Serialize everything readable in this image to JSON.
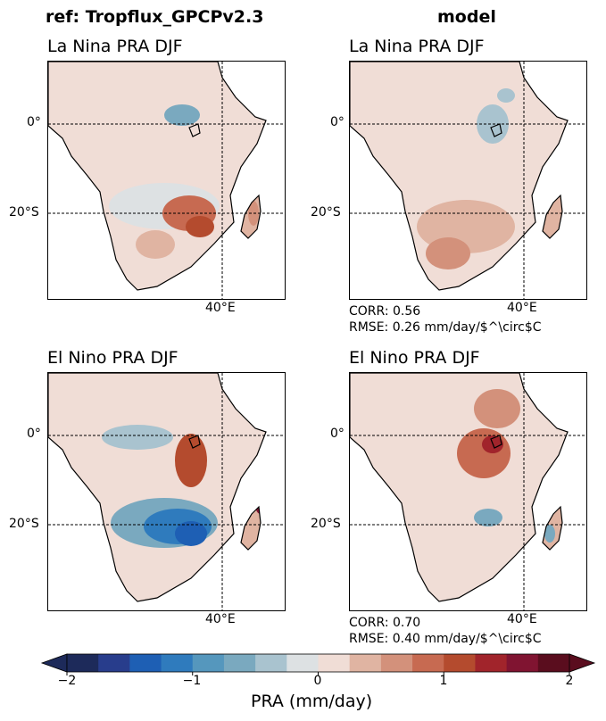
{
  "column_titles": [
    "ref: Tropflux_GPCPv2.3",
    "model"
  ],
  "chart_data": [
    {
      "type": "heatmap",
      "title": "La Nina PRA DJF",
      "column": "ref: Tropflux_GPCPv2.3",
      "lat_ticks": [
        "0°",
        "20°S"
      ],
      "lon_ticks": [
        "40°E"
      ],
      "peak_anomaly": 1.2
    },
    {
      "type": "heatmap",
      "title": "La Nina PRA DJF",
      "column": "model",
      "lat_ticks": [
        "0°",
        "20°S"
      ],
      "lon_ticks": [
        "40°E"
      ],
      "corr_text": "CORR: 0.56",
      "rmse_text": "RMSE: 0.26 mm/day/$^\\circ$C",
      "corr": 0.56,
      "rmse": 0.26
    },
    {
      "type": "heatmap",
      "title": "El Nino PRA DJF",
      "column": "ref: Tropflux_GPCPv2.3",
      "lat_ticks": [
        "0°",
        "20°S"
      ],
      "lon_ticks": [
        "40°E"
      ],
      "peak_anomaly": -1.6
    },
    {
      "type": "heatmap",
      "title": "El Nino PRA DJF",
      "column": "model",
      "lat_ticks": [
        "0°",
        "20°S"
      ],
      "lon_ticks": [
        "40°E"
      ],
      "corr_text": "CORR: 0.70",
      "rmse_text": "RMSE: 0.40 mm/day/$^\\circ$C",
      "corr": 0.7,
      "rmse": 0.4
    }
  ],
  "colorbar": {
    "label": "PRA (mm/day)",
    "ticks": [
      "−2",
      "−1",
      "0",
      "1",
      "2"
    ],
    "range": [
      -2,
      2
    ],
    "colors": [
      "#1d2a5a",
      "#283d8c",
      "#1e5fb4",
      "#2f7bbd",
      "#5597bd",
      "#7aa9bf",
      "#a9c3cf",
      "#dde1e3",
      "#f0ddd6",
      "#e0b4a2",
      "#d3917b",
      "#c76a51",
      "#b44b2e",
      "#a1242b",
      "#801431",
      "#5a0d1e"
    ]
  }
}
